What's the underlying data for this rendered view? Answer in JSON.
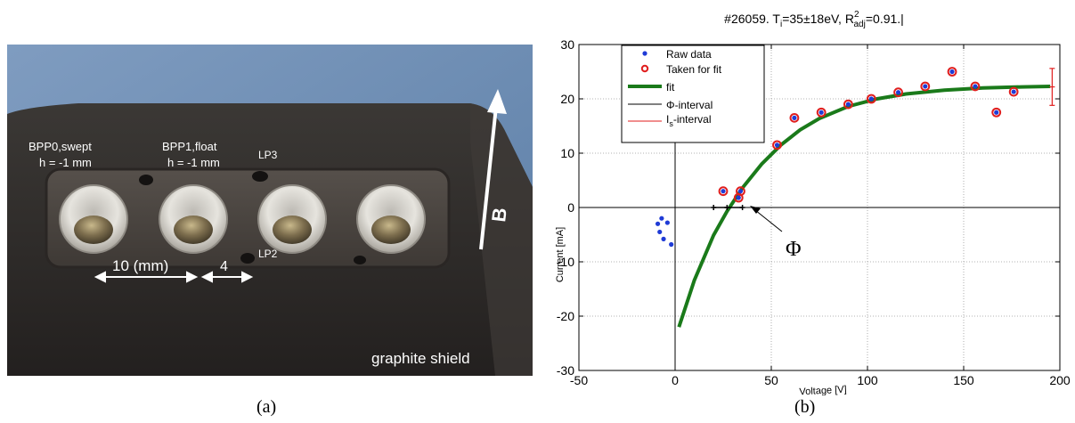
{
  "figure": {
    "caption_a": "(a)",
    "caption_b": "(b)"
  },
  "photo": {
    "labels": {
      "bpp0_line1": "BPP0,swept",
      "bpp0_line2": "h = -1 mm",
      "bpp1_line1": "BPP1,float",
      "bpp1_line2": "h = -1 mm",
      "lp3": "LP3",
      "lp2": "LP2",
      "dim_10": "10  (mm)",
      "dim_4": "4",
      "field": "B",
      "shield": "graphite shield"
    },
    "colors": {
      "background": "#6f8fb3",
      "shield": "#2f2c2a",
      "plate": "#4a4541",
      "cup": "#d8d6d0",
      "label": "#ffffff"
    }
  },
  "chart_data": {
    "type": "scatter",
    "title": "#26059. T_i=35±18eV, R^2_adj=0.91.|",
    "title_parts": {
      "p1": "#26059. T",
      "p1_sub": "i",
      "p2": "=35±18eV, R",
      "p2_sup": "2",
      "p2_sub": "adj",
      "p3": "=0.91.|"
    },
    "xlabel": "Voltage [V]",
    "ylabel": "Current [mA]",
    "xlim": [
      -50,
      200
    ],
    "ylim": [
      -30,
      30
    ],
    "xticks": [
      -50,
      0,
      50,
      100,
      150,
      200
    ],
    "yticks": [
      -30,
      -20,
      -10,
      0,
      10,
      20,
      30
    ],
    "grid": true,
    "legend_position": "top-left",
    "legend": {
      "raw": "Raw data",
      "taken": "Taken for fit",
      "fit": "fit",
      "phi": "Φ-interval",
      "is_main": "I",
      "is_sub": "s",
      "is_rest": "-interval"
    },
    "annotation": "Φ",
    "colors": {
      "raw": "#1f3bd6",
      "taken": "#e01e1e",
      "fit": "#1a7a1a",
      "phi": "#000000",
      "is": "#e01e1e"
    },
    "series": [
      {
        "name": "Raw data",
        "points": [
          [
            -9,
            -3.0
          ],
          [
            -8,
            -4.5
          ],
          [
            -7,
            -2.0
          ],
          [
            -6,
            -5.8
          ],
          [
            -4,
            -2.8
          ],
          [
            -2,
            -6.8
          ],
          [
            25,
            3.0
          ],
          [
            33,
            1.8
          ],
          [
            34,
            3.0
          ],
          [
            53,
            11.5
          ],
          [
            62,
            16.5
          ],
          [
            76,
            17.5
          ],
          [
            90,
            19.0
          ],
          [
            102,
            20.0
          ],
          [
            116,
            21.2
          ],
          [
            130,
            22.3
          ],
          [
            144,
            25.0
          ],
          [
            156,
            22.3
          ],
          [
            167,
            17.5
          ],
          [
            176,
            21.3
          ]
        ]
      },
      {
        "name": "Taken for fit",
        "points": [
          [
            25,
            3.0
          ],
          [
            33,
            1.8
          ],
          [
            34,
            3.0
          ],
          [
            53,
            11.5
          ],
          [
            62,
            16.5
          ],
          [
            76,
            17.5
          ],
          [
            90,
            19.0
          ],
          [
            102,
            20.0
          ],
          [
            116,
            21.2
          ],
          [
            130,
            22.3
          ],
          [
            144,
            25.0
          ],
          [
            156,
            22.3
          ],
          [
            167,
            17.5
          ],
          [
            176,
            21.3
          ]
        ]
      },
      {
        "name": "fit",
        "points": [
          [
            2,
            -22.0
          ],
          [
            10,
            -13.4
          ],
          [
            20,
            -5.1
          ],
          [
            27,
            -0.7
          ],
          [
            35,
            3.6
          ],
          [
            45,
            8.0
          ],
          [
            55,
            11.5
          ],
          [
            65,
            14.3
          ],
          [
            75,
            16.4
          ],
          [
            90,
            18.6
          ],
          [
            105,
            20.0
          ],
          [
            120,
            20.9
          ],
          [
            140,
            21.6
          ],
          [
            160,
            22.0
          ],
          [
            180,
            22.2
          ],
          [
            195,
            22.3
          ]
        ]
      },
      {
        "name": "Φ-interval",
        "points": [
          [
            20,
            0
          ],
          [
            27,
            0
          ],
          [
            35,
            0
          ]
        ]
      },
      {
        "name": "I_s-interval",
        "points": [
          [
            196,
            18.8
          ],
          [
            196,
            22.2
          ],
          [
            196,
            25.6
          ]
        ]
      }
    ]
  }
}
